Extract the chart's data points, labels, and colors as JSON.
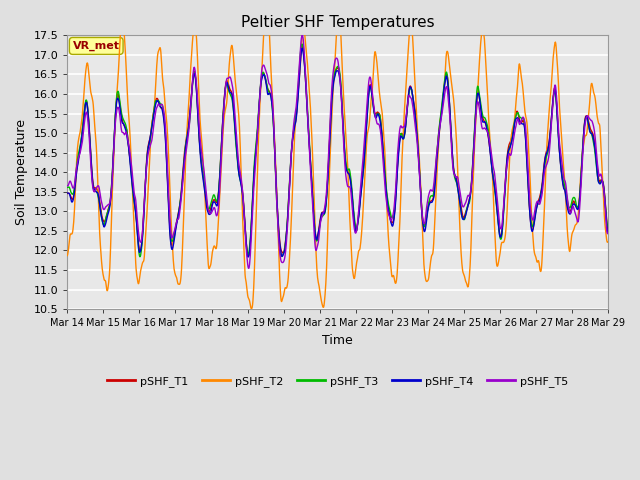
{
  "title": "Peltier SHF Temperatures",
  "xlabel": "Time",
  "ylabel": "Soil Temperature",
  "ylim": [
    10.5,
    17.5
  ],
  "bg_color": "#e0e0e0",
  "plot_bg_color": "#e8e8e8",
  "grid_color": "white",
  "series_names": [
    "pSHF_T1",
    "pSHF_T2",
    "pSHF_T3",
    "pSHF_T4",
    "pSHF_T5"
  ],
  "series_colors": [
    "#cc0000",
    "#ff8800",
    "#00bb00",
    "#0000cc",
    "#9900cc"
  ],
  "series_lw": [
    1.0,
    1.0,
    1.0,
    1.0,
    1.0
  ],
  "xtick_labels": [
    "Mar 14",
    "Mar 15",
    "Mar 16",
    "Mar 17",
    "Mar 18",
    "Mar 19",
    "Mar 20",
    "Mar 21",
    "Mar 22",
    "Mar 23",
    "Mar 24",
    "Mar 25",
    "Mar 26",
    "Mar 27",
    "Mar 28",
    "Mar 29"
  ],
  "yticks": [
    10.5,
    11.0,
    11.5,
    12.0,
    12.5,
    13.0,
    13.5,
    14.0,
    14.5,
    15.0,
    15.5,
    16.0,
    16.5,
    17.0,
    17.5
  ],
  "annotation": {
    "text": "VR_met",
    "color": "#990000",
    "bg": "#ffff99",
    "fontsize": 8
  },
  "figsize": [
    6.4,
    4.8
  ],
  "dpi": 100
}
